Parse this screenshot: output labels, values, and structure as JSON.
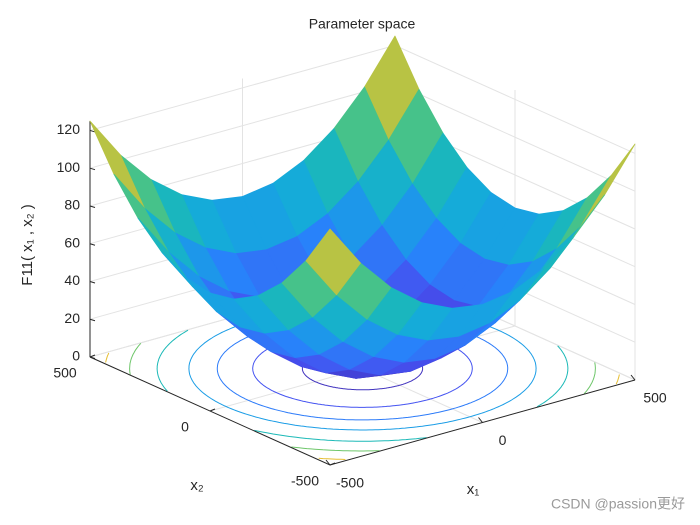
{
  "chart_data": {
    "type": "surface",
    "title": "Parameter space",
    "xlabel": "x₁",
    "ylabel": "x₂",
    "zlabel": "F11( x₁ , x₂ )",
    "watermark": "CSDN @passion更好",
    "x": [
      -500,
      -400,
      -300,
      -200,
      -100,
      0,
      100,
      200,
      300,
      400,
      500
    ],
    "y": [
      -500,
      -400,
      -300,
      -200,
      -100,
      0,
      100,
      200,
      300,
      400,
      500
    ],
    "z": [
      [
        125,
        102.5,
        85,
        72.5,
        65,
        62.5,
        65,
        72.5,
        85,
        102.5,
        125
      ],
      [
        102.5,
        80,
        62.5,
        50,
        42.5,
        40,
        42.5,
        50,
        62.5,
        80,
        102.5
      ],
      [
        85,
        62.5,
        45,
        32.5,
        25,
        22.5,
        25,
        32.5,
        45,
        62.5,
        85
      ],
      [
        72.5,
        50,
        32.5,
        20,
        12.5,
        10,
        12.5,
        20,
        32.5,
        50,
        72.5
      ],
      [
        65,
        42.5,
        25,
        12.5,
        5,
        2.5,
        5,
        12.5,
        25,
        42.5,
        65
      ],
      [
        62.5,
        40,
        22.5,
        10,
        2.5,
        0,
        2.5,
        10,
        22.5,
        40,
        62.5
      ],
      [
        65,
        42.5,
        25,
        12.5,
        5,
        2.5,
        5,
        12.5,
        25,
        42.5,
        65
      ],
      [
        72.5,
        50,
        32.5,
        20,
        12.5,
        10,
        12.5,
        20,
        32.5,
        50,
        72.5
      ],
      [
        85,
        62.5,
        45,
        32.5,
        25,
        22.5,
        25,
        32.5,
        45,
        62.5,
        85
      ],
      [
        102.5,
        80,
        62.5,
        50,
        42.5,
        40,
        42.5,
        50,
        62.5,
        80,
        102.5
      ],
      [
        125,
        102.5,
        85,
        72.5,
        65,
        62.5,
        65,
        72.5,
        85,
        102.5,
        125
      ]
    ],
    "contour_levels": [
      6,
      20,
      35,
      50,
      70,
      90,
      110
    ],
    "xlim": [
      -500,
      500
    ],
    "ylim": [
      -500,
      500
    ],
    "zlim": [
      0,
      125
    ],
    "xticks": [
      -500,
      0,
      500
    ],
    "yticks": [
      -500,
      0,
      500
    ],
    "zticks": [
      0,
      20,
      40,
      60,
      80,
      100,
      120
    ],
    "grid": true
  }
}
